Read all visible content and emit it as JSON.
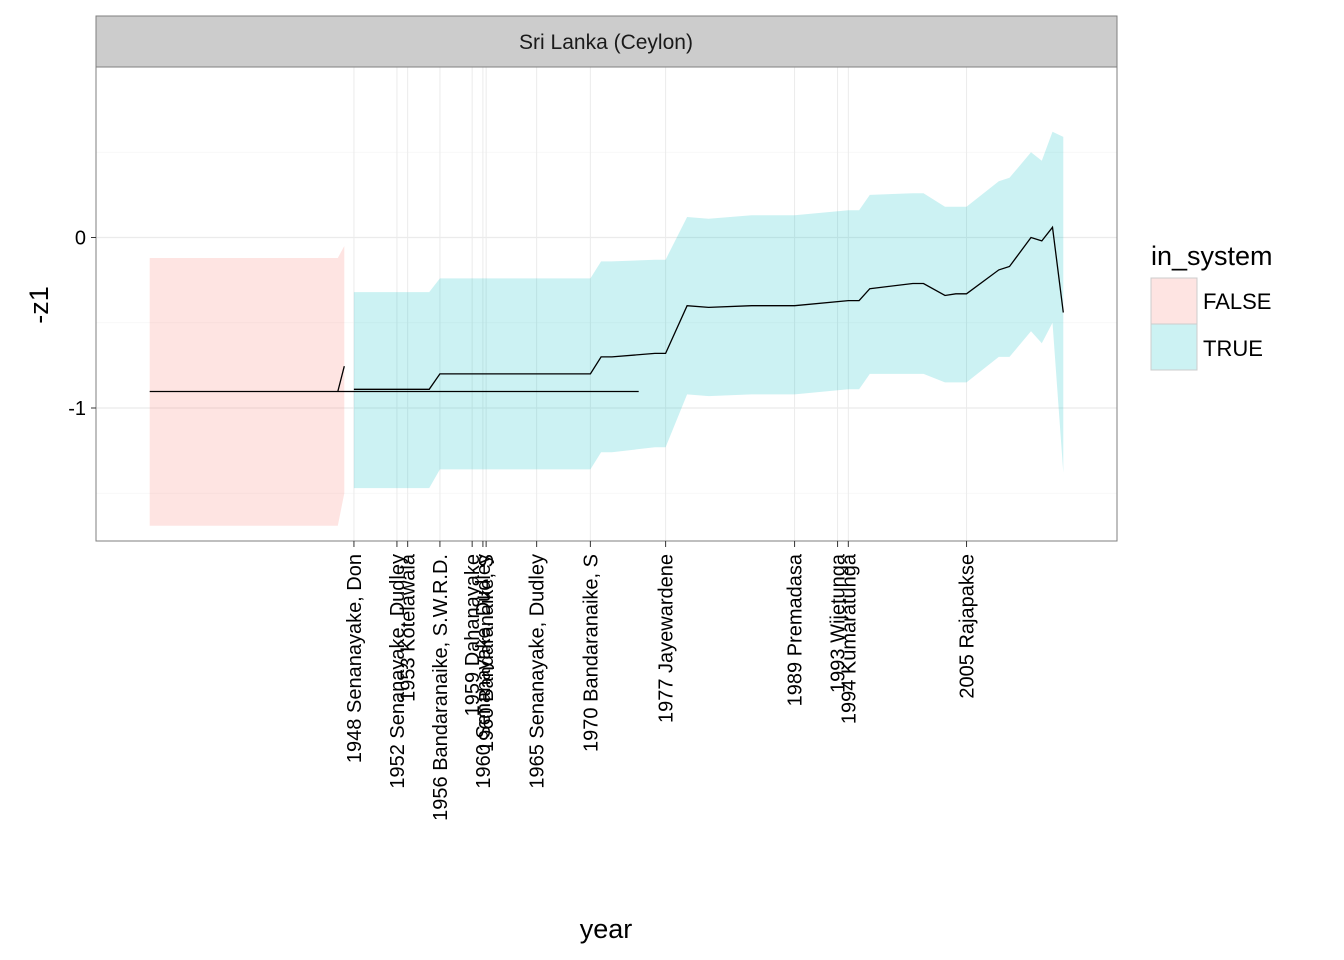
{
  "chart_data": {
    "type": "area",
    "facet_title": "Sri Lanka (Ceylon)",
    "xlabel": "year",
    "ylabel": "-z1",
    "xlim": [
      1924,
      2019
    ],
    "ylim": [
      -1.78,
      1.0
    ],
    "y_ticks": [
      {
        "value": 0,
        "label": "0"
      },
      {
        "value": -1,
        "label": "-1"
      }
    ],
    "x_ticks": [
      {
        "value": 1948,
        "label": "1948 Senanayake, Don"
      },
      {
        "value": 1952,
        "label": "1952 Senanayake, Dudley"
      },
      {
        "value": 1953,
        "label": "1953 Kotelawala"
      },
      {
        "value": 1956,
        "label": "1956 Bandaranaike, S.W.R.D."
      },
      {
        "value": 1959,
        "label": "1959 Dahanayake"
      },
      {
        "value": 1960,
        "label": "1960 Senanayake, Dudley"
      },
      {
        "value": 1960.3,
        "label": "1960 Bandaranaike, S"
      },
      {
        "value": 1965,
        "label": "1965 Senanayake, Dudley"
      },
      {
        "value": 1970,
        "label": "1970 Bandaranaike, S"
      },
      {
        "value": 1977,
        "label": "1977 Jayewardene"
      },
      {
        "value": 1989,
        "label": "1989 Premadasa"
      },
      {
        "value": 1993,
        "label": "1993 Wijetunga"
      },
      {
        "value": 1994,
        "label": "1994 Kumaratunga"
      },
      {
        "value": 2005,
        "label": "2005 Rajapakse"
      }
    ],
    "legend": {
      "title": "in_system",
      "entries": [
        {
          "label": "FALSE",
          "color": "#F8766D"
        },
        {
          "label": "TRUE",
          "color": "#00BFC4"
        }
      ]
    },
    "series": [
      {
        "name": "FALSE",
        "color": "#F8766D",
        "x": [
          1929,
          1974.5,
          1946.5,
          1947.1
        ],
        "y": [
          -0.903,
          -0.903,
          -0.903,
          -0.755
        ],
        "lower": [
          -1.69,
          -1.69,
          -1.69,
          -1.5
        ],
        "upper": [
          -0.12,
          -0.12,
          -0.12,
          -0.05
        ]
      },
      {
        "name": "TRUE",
        "color": "#00BFC4",
        "x": [
          1948,
          1955,
          1956,
          1962,
          1965,
          1970,
          1971,
          1972,
          1976,
          1977,
          1979,
          1981,
          1985,
          1989,
          1994,
          1995,
          1996,
          2000,
          2001,
          2003,
          2004,
          2005,
          2008,
          2009,
          2011,
          2012,
          2013,
          2014
        ],
        "y": [
          -0.89,
          -0.89,
          -0.8,
          -0.8,
          -0.8,
          -0.8,
          -0.7,
          -0.7,
          -0.68,
          -0.68,
          -0.4,
          -0.41,
          -0.4,
          -0.4,
          -0.37,
          -0.37,
          -0.3,
          -0.27,
          -0.27,
          -0.34,
          -0.33,
          -0.33,
          -0.19,
          -0.17,
          0.0,
          -0.02,
          0.06,
          -0.44
        ],
        "lower": [
          -1.47,
          -1.47,
          -1.36,
          -1.36,
          -1.36,
          -1.36,
          -1.26,
          -1.26,
          -1.23,
          -1.23,
          -0.92,
          -0.93,
          -0.92,
          -0.92,
          -0.89,
          -0.89,
          -0.8,
          -0.8,
          -0.8,
          -0.85,
          -0.85,
          -0.85,
          -0.7,
          -0.7,
          -0.55,
          -0.62,
          -0.5,
          -1.38
        ],
        "upper": [
          -0.32,
          -0.32,
          -0.24,
          -0.24,
          -0.24,
          -0.24,
          -0.14,
          -0.14,
          -0.13,
          -0.13,
          0.12,
          0.11,
          0.13,
          0.13,
          0.16,
          0.16,
          0.25,
          0.26,
          0.26,
          0.18,
          0.18,
          0.18,
          0.33,
          0.35,
          0.5,
          0.45,
          0.62,
          0.59
        ]
      }
    ]
  }
}
